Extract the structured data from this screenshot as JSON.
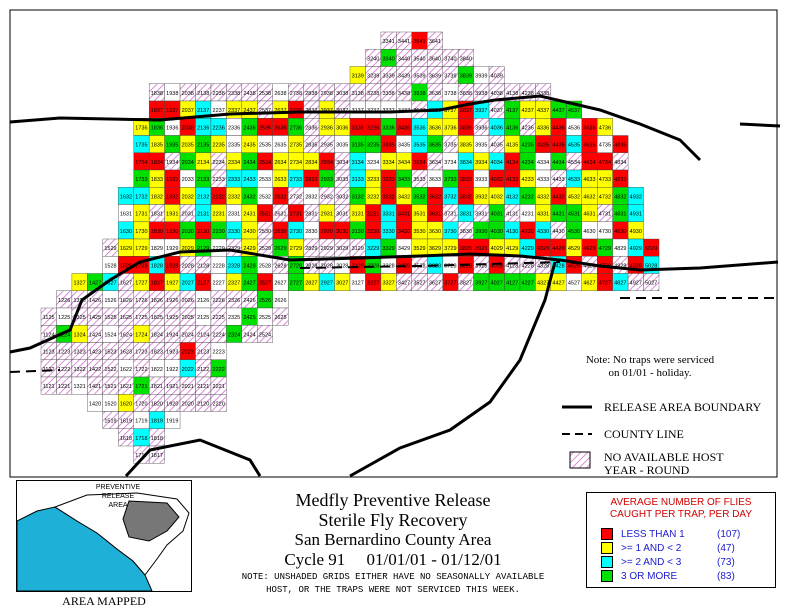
{
  "map": {
    "grid_rows": [
      {
        "row": 41,
        "cols": [
          33,
          34,
          35,
          36
        ]
      },
      {
        "row": 40,
        "cols": [
          32,
          33,
          34,
          35,
          36,
          37,
          38
        ]
      },
      {
        "row": 39,
        "cols": [
          31,
          32,
          33,
          34,
          35,
          36,
          37,
          38,
          39,
          40
        ]
      },
      {
        "row": 38,
        "cols": [
          18,
          19,
          20,
          21,
          22,
          23,
          24,
          25,
          26,
          27,
          28,
          29,
          30,
          31,
          32,
          33,
          34,
          35,
          36,
          37,
          38,
          39,
          40,
          41,
          42,
          43
        ]
      },
      {
        "row": 37,
        "cols": [
          18,
          19,
          20,
          21,
          22,
          23,
          24,
          25,
          26,
          27,
          28,
          29,
          30,
          31,
          32,
          33,
          34,
          35,
          36,
          37,
          38,
          39,
          40,
          41,
          42,
          43,
          44,
          45
        ]
      },
      {
        "row": 36,
        "cols": [
          17,
          18,
          19,
          20,
          21,
          22,
          23,
          24,
          25,
          26,
          27,
          28,
          29,
          30,
          31,
          32,
          33,
          34,
          35,
          36,
          37,
          38,
          39,
          40,
          41,
          42,
          43,
          44,
          45,
          46,
          47
        ]
      },
      {
        "row": 35,
        "cols": [
          17,
          18,
          19,
          20,
          21,
          22,
          23,
          24,
          25,
          26,
          27,
          28,
          29,
          30,
          31,
          32,
          33,
          34,
          35,
          36,
          37,
          38,
          39,
          40,
          41,
          42,
          43,
          44,
          45,
          46,
          47,
          48
        ]
      },
      {
        "row": 34,
        "cols": [
          17,
          18,
          19,
          20,
          21,
          22,
          23,
          24,
          25,
          26,
          27,
          28,
          29,
          30,
          31,
          32,
          33,
          34,
          35,
          36,
          37,
          38,
          39,
          40,
          41,
          42,
          43,
          44,
          45,
          46,
          47,
          48
        ]
      },
      {
        "row": 33,
        "cols": [
          17,
          18,
          19,
          20,
          21,
          22,
          23,
          24,
          25,
          26,
          27,
          28,
          29,
          30,
          31,
          32,
          33,
          34,
          35,
          36,
          37,
          38,
          39,
          40,
          41,
          42,
          43,
          44,
          45,
          46,
          47,
          48
        ]
      },
      {
        "row": 32,
        "cols": [
          16,
          17,
          18,
          19,
          20,
          21,
          22,
          23,
          24,
          25,
          26,
          27,
          28,
          29,
          30,
          31,
          32,
          33,
          34,
          35,
          36,
          37,
          38,
          39,
          40,
          41,
          42,
          43,
          44,
          45,
          46,
          47,
          48,
          49
        ]
      },
      {
        "row": 31,
        "cols": [
          16,
          17,
          18,
          19,
          20,
          21,
          22,
          23,
          24,
          25,
          26,
          27,
          28,
          29,
          30,
          31,
          32,
          33,
          34,
          35,
          36,
          37,
          38,
          39,
          40,
          41,
          42,
          43,
          44,
          45,
          46,
          47,
          48,
          49
        ]
      },
      {
        "row": 30,
        "cols": [
          16,
          17,
          18,
          19,
          20,
          21,
          22,
          23,
          24,
          25,
          26,
          27,
          28,
          29,
          30,
          31,
          32,
          33,
          34,
          35,
          36,
          37,
          38,
          39,
          40,
          41,
          42,
          43,
          44,
          45,
          46,
          47,
          48,
          49
        ]
      },
      {
        "row": 29,
        "cols": [
          15,
          16,
          17,
          18,
          19,
          20,
          21,
          22,
          23,
          24,
          25,
          26,
          27,
          28,
          29,
          30,
          31,
          32,
          33,
          34,
          35,
          36,
          37,
          38,
          39,
          40,
          41,
          42,
          43,
          44,
          45,
          46,
          47,
          48,
          49,
          50
        ]
      },
      {
        "row": 28,
        "cols": [
          15,
          16,
          17,
          18,
          19,
          20,
          21,
          22,
          23,
          24,
          25,
          26,
          27,
          28,
          29,
          30,
          31,
          32,
          33,
          34,
          35,
          36,
          37,
          38,
          39,
          40,
          41,
          42,
          43,
          44,
          45,
          46,
          47,
          48,
          49,
          50
        ]
      },
      {
        "row": 27,
        "cols": [
          13,
          14,
          15,
          16,
          17,
          18,
          19,
          20,
          21,
          22,
          23,
          24,
          25,
          26,
          27,
          28,
          29,
          30,
          31,
          32,
          33,
          34,
          35,
          36,
          37,
          38,
          39,
          40,
          41,
          42,
          43,
          44,
          45,
          46,
          47,
          48,
          49,
          50
        ]
      },
      {
        "row": 26,
        "cols": [
          12,
          13,
          14,
          15,
          16,
          17,
          18,
          19,
          20,
          21,
          22,
          23,
          24,
          25,
          26
        ]
      },
      {
        "row": 25,
        "cols": [
          11,
          12,
          13,
          14,
          15,
          16,
          17,
          18,
          19,
          20,
          21,
          22,
          23,
          24,
          25,
          26
        ]
      },
      {
        "row": 24,
        "cols": [
          11,
          12,
          13,
          14,
          15,
          16,
          17,
          18,
          19,
          20,
          21,
          22,
          23,
          24,
          25
        ]
      },
      {
        "row": 23,
        "cols": [
          11,
          12,
          13,
          14,
          15,
          16,
          17,
          18,
          19,
          20,
          21,
          22
        ]
      },
      {
        "row": 22,
        "cols": [
          11,
          12,
          13,
          14,
          15,
          16,
          17,
          18,
          19,
          20,
          21,
          22
        ]
      },
      {
        "row": 21,
        "cols": [
          11,
          12,
          13,
          14,
          15,
          16,
          17,
          18,
          19,
          20,
          21,
          22
        ]
      },
      {
        "row": 20,
        "cols": [
          14,
          15,
          16,
          17,
          18,
          19,
          20,
          21,
          22
        ]
      },
      {
        "row": 19,
        "cols": [
          15,
          16,
          17,
          18,
          19
        ]
      },
      {
        "row": 18,
        "cols": [
          16,
          17,
          18
        ]
      },
      {
        "row": 17,
        "cols": [
          17,
          18
        ]
      }
    ],
    "colors": {
      "less_than_1": "#ff0000",
      "one_to_two": "#ffff00",
      "two_to_three": "#00ffff",
      "three_or_more": "#00e000",
      "host": "#cc66cc"
    }
  },
  "note": {
    "line1": "Note: No traps were serviced",
    "line2": "on 01/01 - holiday."
  },
  "legend": {
    "boundary": "RELEASE AREA BOUNDARY",
    "county": "COUNTY LINE",
    "host1": "NO AVAILABLE HOST",
    "host2": "YEAR - ROUND"
  },
  "title": {
    "line1": "Medfly Preventive Release",
    "line2": "Sterile Fly Recovery",
    "line3": "San Bernardino County Area",
    "line4": "Cycle 91     01/01/01 - 01/12/01",
    "note1": "NOTE: UNSHADED GRIDS EITHER HAVE NO SEASONALLY AVAILABLE",
    "note2": "HOST, OR THE TRAPS WERE NOT SERVICED THIS WEEK."
  },
  "average_box": {
    "heading1": "AVERAGE NUMBER OF FLIES",
    "heading2": "CAUGHT PER TRAP, PER DAY",
    "rows": [
      {
        "label": "LESS THAN 1",
        "count": "(107)",
        "color": "#ff0000"
      },
      {
        "label": ">= 1 AND < 2",
        "count": "(47)",
        "color": "#ffff00"
      },
      {
        "label": ">= 2 AND < 3",
        "count": "(73)",
        "color": "#00ffff"
      },
      {
        "label": "3 OR MORE",
        "count": "(83)",
        "color": "#00e000"
      }
    ]
  },
  "inset": {
    "label1": "PREVENTIVE RELEASE",
    "label2": "AREA",
    "caption": "AREA MAPPED"
  }
}
